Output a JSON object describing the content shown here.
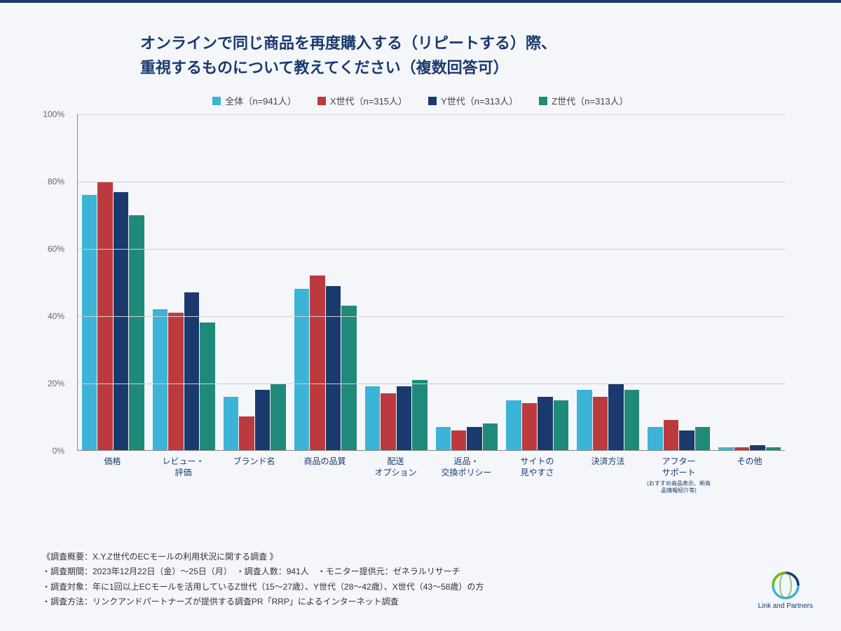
{
  "title_line1": "オンラインで同じ商品を再度購入する（リピートする）際、",
  "title_line2": "重視するものについて教えてください（複数回答可）",
  "chart": {
    "type": "bar",
    "ylim": [
      0,
      100
    ],
    "ytick_step": 20,
    "grid_color": "#d0d0d0",
    "background_color": "#f4f6fa",
    "series": [
      {
        "label": "全体（n=941人）",
        "color": "#3bb4d6"
      },
      {
        "label": "X世代（n=315人）",
        "color": "#bc3a3e"
      },
      {
        "label": "Y世代（n=313人）",
        "color": "#1a3a6e"
      },
      {
        "label": "Z世代（n=313人）",
        "color": "#1f8a7a"
      }
    ],
    "categories": [
      {
        "label": "価格",
        "sub": "",
        "values": [
          76,
          80,
          77,
          70
        ]
      },
      {
        "label": "レビュー・評価",
        "sub": "",
        "values": [
          42,
          41,
          47,
          38
        ]
      },
      {
        "label": "ブランド名",
        "sub": "",
        "values": [
          16,
          10,
          18,
          20
        ]
      },
      {
        "label": "商品の品質",
        "sub": "",
        "values": [
          48,
          52,
          49,
          43
        ]
      },
      {
        "label": "配送オプション",
        "sub": "",
        "values": [
          19,
          17,
          19,
          21
        ]
      },
      {
        "label": "返品・交換ポリシー",
        "sub": "",
        "values": [
          7,
          6,
          7,
          8
        ]
      },
      {
        "label": "サイトの見やすさ",
        "sub": "",
        "values": [
          15,
          14,
          16,
          15
        ]
      },
      {
        "label": "決済方法",
        "sub": "",
        "values": [
          18,
          16,
          20,
          18
        ]
      },
      {
        "label": "アフターサポート",
        "sub": "(おすすめ商品表示、新商品情報紹介等)",
        "values": [
          7,
          9,
          6,
          7
        ]
      },
      {
        "label": "その他",
        "sub": "",
        "values": [
          1,
          1,
          1.5,
          1
        ]
      }
    ]
  },
  "footer": {
    "line1": "《調査概要：X.Y.Z世代のECモールの利用状況に関する調査 》",
    "line2": "・調査期間：2023年12月22日（金）〜25日（月）　・調査人数：941人　・モニター提供元：ゼネラルリサーチ",
    "line3": "・調査対象：年に1回以上ECモールを活用しているZ世代（15〜27歳）、Y世代（28〜42歳）、X世代（43〜58歳）の方",
    "line4": "・調査方法：リンクアンドパートナーズが提供する調査PR「RRP」によるインターネット調査"
  },
  "logo_text": "Link and Partners"
}
